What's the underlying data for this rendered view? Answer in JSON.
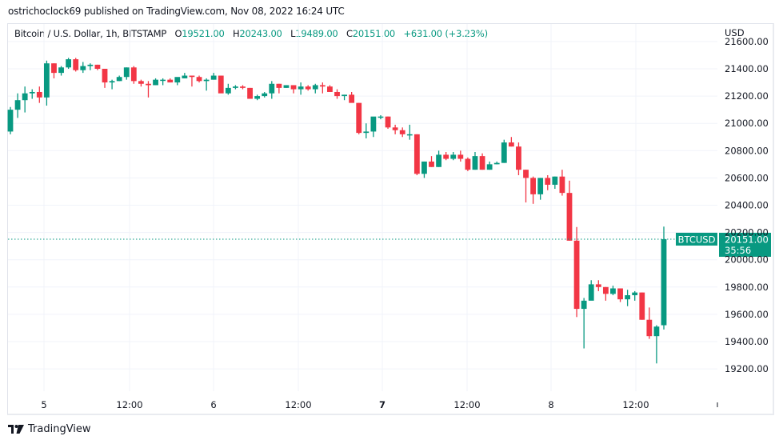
{
  "publisher_line": "ostrichoclock69 published on TradingView.com, Nov 08, 2022 16:24 UTC",
  "legend": {
    "symbol_desc": "Bitcoin / U.S. Dollar, 1h, BITSTAMP",
    "o_label": "O",
    "o_value": "19521.00",
    "h_label": "H",
    "h_value": "20243.00",
    "l_label": "L",
    "l_value": "19489.00",
    "c_label": "C",
    "c_value": "20151.00",
    "change": "+631.00 (+3.23%)"
  },
  "price_axis": {
    "currency": "USD",
    "ticks": [
      "21600.00",
      "21400.00",
      "21200.00",
      "21000.00",
      "20800.00",
      "20600.00",
      "20400.00",
      "20200.00",
      "20000.00",
      "19800.00",
      "19600.00",
      "19400.00",
      "19200.00"
    ]
  },
  "last_price": {
    "symbol": "BTCUSD",
    "price": "20151.00",
    "countdown": "35:56"
  },
  "time_axis": {
    "ticks": [
      "5",
      "12:00",
      "6",
      "12:00",
      "7",
      "12:00",
      "8",
      "12:00"
    ]
  },
  "footer": {
    "brand": "TradingView"
  },
  "colors": {
    "up": "#089981",
    "down": "#f23645",
    "grid": "#f0f3fa",
    "text": "#131722"
  },
  "chart_data": {
    "type": "candlestick",
    "title": "Bitcoin / U.S. Dollar, 1h, BITSTAMP",
    "xlabel": "",
    "ylabel": "USD",
    "ylim": [
      19050,
      21620
    ],
    "x_ticks": [
      "5",
      "12:00",
      "6",
      "12:00",
      "7",
      "12:00",
      "8",
      "12:00"
    ],
    "y_ticks": [
      19200,
      19400,
      19600,
      19800,
      20000,
      20200,
      20400,
      20600,
      20800,
      21000,
      21200,
      21400,
      21600
    ],
    "grid": true,
    "last_price_line": 20151,
    "candles": [
      [
        20940,
        21120,
        20920,
        21100
      ],
      [
        21100,
        21220,
        21040,
        21170
      ],
      [
        21170,
        21270,
        21080,
        21220
      ],
      [
        21220,
        21250,
        21180,
        21230
      ],
      [
        21230,
        21270,
        21150,
        21190
      ],
      [
        21190,
        21460,
        21130,
        21440
      ],
      [
        21440,
        21440,
        21330,
        21370
      ],
      [
        21370,
        21420,
        21350,
        21410
      ],
      [
        21410,
        21480,
        21400,
        21470
      ],
      [
        21470,
        21480,
        21380,
        21390
      ],
      [
        21390,
        21450,
        21370,
        21420
      ],
      [
        21420,
        21440,
        21390,
        21430
      ],
      [
        21430,
        21430,
        21390,
        21400
      ],
      [
        21400,
        21400,
        21260,
        21300
      ],
      [
        21300,
        21320,
        21250,
        21310
      ],
      [
        21310,
        21350,
        21310,
        21340
      ],
      [
        21340,
        21410,
        21320,
        21410
      ],
      [
        21410,
        21420,
        21290,
        21310
      ],
      [
        21310,
        21320,
        21270,
        21290
      ],
      [
        21290,
        21310,
        21190,
        21280
      ],
      [
        21280,
        21330,
        21280,
        21320
      ],
      [
        21320,
        21330,
        21280,
        21320
      ],
      [
        21320,
        21330,
        21300,
        21300
      ],
      [
        21300,
        21330,
        21280,
        21340
      ],
      [
        21330,
        21370,
        21330,
        21350
      ],
      [
        21350,
        21350,
        21270,
        21340
      ],
      [
        21340,
        21350,
        21300,
        21310
      ],
      [
        21310,
        21330,
        21240,
        21320
      ],
      [
        21320,
        21370,
        21320,
        21350
      ],
      [
        21350,
        21350,
        21230,
        21220
      ],
      [
        21220,
        21290,
        21210,
        21260
      ],
      [
        21260,
        21280,
        21250,
        21270
      ],
      [
        21270,
        21280,
        21250,
        21260
      ],
      [
        21260,
        21260,
        21180,
        21180
      ],
      [
        21180,
        21210,
        21170,
        21200
      ],
      [
        21200,
        21230,
        21190,
        21220
      ],
      [
        21220,
        21310,
        21180,
        21290
      ],
      [
        21290,
        21290,
        21220,
        21260
      ],
      [
        21260,
        21280,
        21260,
        21280
      ],
      [
        21280,
        21280,
        21220,
        21250
      ],
      [
        21250,
        21300,
        21210,
        21270
      ],
      [
        21270,
        21280,
        21240,
        21250
      ],
      [
        21250,
        21290,
        21220,
        21280
      ],
      [
        21280,
        21300,
        21220,
        21270
      ],
      [
        21270,
        21280,
        21230,
        21230
      ],
      [
        21230,
        21250,
        21180,
        21200
      ],
      [
        21200,
        21210,
        21170,
        21210
      ],
      [
        21210,
        21230,
        21160,
        21150
      ],
      [
        21150,
        21150,
        20920,
        20930
      ],
      [
        20930,
        21000,
        20890,
        20940
      ],
      [
        20940,
        21040,
        20900,
        21050
      ],
      [
        21050,
        21060,
        21030,
        21050
      ],
      [
        21050,
        21050,
        20960,
        20970
      ],
      [
        20970,
        20990,
        20920,
        20950
      ],
      [
        20950,
        20970,
        20900,
        20920
      ],
      [
        20920,
        20990,
        20880,
        20920
      ],
      [
        20920,
        20920,
        20620,
        20630
      ],
      [
        20630,
        20720,
        20600,
        20720
      ],
      [
        20720,
        20760,
        20680,
        20680
      ],
      [
        20680,
        20800,
        20680,
        20770
      ],
      [
        20770,
        20790,
        20730,
        20740
      ],
      [
        20740,
        20790,
        20730,
        20770
      ],
      [
        20770,
        20800,
        20720,
        20740
      ],
      [
        20740,
        20750,
        20650,
        20660
      ],
      [
        20660,
        20790,
        20660,
        20760
      ],
      [
        20760,
        20780,
        20660,
        20660
      ],
      [
        20660,
        20720,
        20660,
        20700
      ],
      [
        20700,
        20720,
        20700,
        20710
      ],
      [
        20710,
        20880,
        20710,
        20860
      ],
      [
        20860,
        20900,
        20830,
        20830
      ],
      [
        20830,
        20860,
        20620,
        20660
      ],
      [
        20660,
        20660,
        20420,
        20600
      ],
      [
        20600,
        20610,
        20410,
        20480
      ],
      [
        20480,
        20600,
        20440,
        20600
      ],
      [
        20600,
        20620,
        20510,
        20550
      ],
      [
        20550,
        20610,
        20520,
        20610
      ],
      [
        20610,
        20660,
        20470,
        20490
      ],
      [
        20490,
        20580,
        20140,
        20140
      ],
      [
        20140,
        20240,
        19580,
        19640
      ],
      [
        19640,
        19720,
        19350,
        19700
      ],
      [
        19700,
        19850,
        19720,
        19820
      ],
      [
        19820,
        19850,
        19770,
        19800
      ],
      [
        19800,
        19800,
        19700,
        19750
      ],
      [
        19750,
        19810,
        19740,
        19790
      ],
      [
        19790,
        19790,
        19690,
        19710
      ],
      [
        19710,
        19780,
        19660,
        19740
      ],
      [
        19740,
        19770,
        19700,
        19760
      ],
      [
        19760,
        19760,
        19560,
        19560
      ],
      [
        19560,
        19650,
        19420,
        19440
      ],
      [
        19440,
        19520,
        19240,
        19510
      ],
      [
        19520,
        20243,
        19489,
        20151
      ]
    ]
  }
}
